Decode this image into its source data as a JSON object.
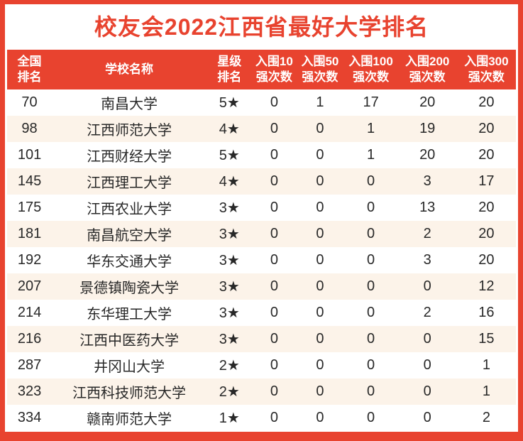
{
  "title": "校友会2022江西省最好大学排名",
  "colors": {
    "accent_red": "#e8432f",
    "stripe_cream": "#fcf3e9",
    "header_text": "#ffffff",
    "body_text": "#282828"
  },
  "chart_data": {
    "type": "table",
    "title": "校友会2022江西省最好大学排名",
    "columns": [
      {
        "key": "rank",
        "label": "全国\n排名"
      },
      {
        "key": "name",
        "label": "学校名称"
      },
      {
        "key": "star",
        "label": "星级\n排名"
      },
      {
        "key": "top10",
        "label": "入围10\n强次数"
      },
      {
        "key": "top50",
        "label": "入围50\n强次数"
      },
      {
        "key": "top100",
        "label": "入围100\n强次数"
      },
      {
        "key": "top200",
        "label": "入围200\n强次数"
      },
      {
        "key": "top300",
        "label": "入围300\n强次数"
      }
    ],
    "rows": [
      {
        "rank": "70",
        "name": "南昌大学",
        "star": "5★",
        "top10": "0",
        "top50": "1",
        "top100": "17",
        "top200": "20",
        "top300": "20"
      },
      {
        "rank": "98",
        "name": "江西师范大学",
        "star": "4★",
        "top10": "0",
        "top50": "0",
        "top100": "1",
        "top200": "19",
        "top300": "20"
      },
      {
        "rank": "101",
        "name": "江西财经大学",
        "star": "5★",
        "top10": "0",
        "top50": "0",
        "top100": "1",
        "top200": "20",
        "top300": "20"
      },
      {
        "rank": "145",
        "name": "江西理工大学",
        "star": "4★",
        "top10": "0",
        "top50": "0",
        "top100": "0",
        "top200": "3",
        "top300": "17"
      },
      {
        "rank": "175",
        "name": "江西农业大学",
        "star": "3★",
        "top10": "0",
        "top50": "0",
        "top100": "0",
        "top200": "13",
        "top300": "20"
      },
      {
        "rank": "181",
        "name": "南昌航空大学",
        "star": "3★",
        "top10": "0",
        "top50": "0",
        "top100": "0",
        "top200": "2",
        "top300": "20"
      },
      {
        "rank": "192",
        "name": "华东交通大学",
        "star": "3★",
        "top10": "0",
        "top50": "0",
        "top100": "0",
        "top200": "3",
        "top300": "20"
      },
      {
        "rank": "207",
        "name": "景德镇陶瓷大学",
        "star": "3★",
        "top10": "0",
        "top50": "0",
        "top100": "0",
        "top200": "0",
        "top300": "12"
      },
      {
        "rank": "214",
        "name": "东华理工大学",
        "star": "3★",
        "top10": "0",
        "top50": "0",
        "top100": "0",
        "top200": "2",
        "top300": "16"
      },
      {
        "rank": "216",
        "name": "江西中医药大学",
        "star": "3★",
        "top10": "0",
        "top50": "0",
        "top100": "0",
        "top200": "0",
        "top300": "15"
      },
      {
        "rank": "287",
        "name": "井冈山大学",
        "star": "2★",
        "top10": "0",
        "top50": "0",
        "top100": "0",
        "top200": "0",
        "top300": "1"
      },
      {
        "rank": "323",
        "name": "江西科技师范大学",
        "star": "2★",
        "top10": "0",
        "top50": "0",
        "top100": "0",
        "top200": "0",
        "top300": "1"
      },
      {
        "rank": "334",
        "name": "赣南师范大学",
        "star": "1★",
        "top10": "0",
        "top50": "0",
        "top100": "0",
        "top200": "0",
        "top300": "2"
      }
    ]
  }
}
